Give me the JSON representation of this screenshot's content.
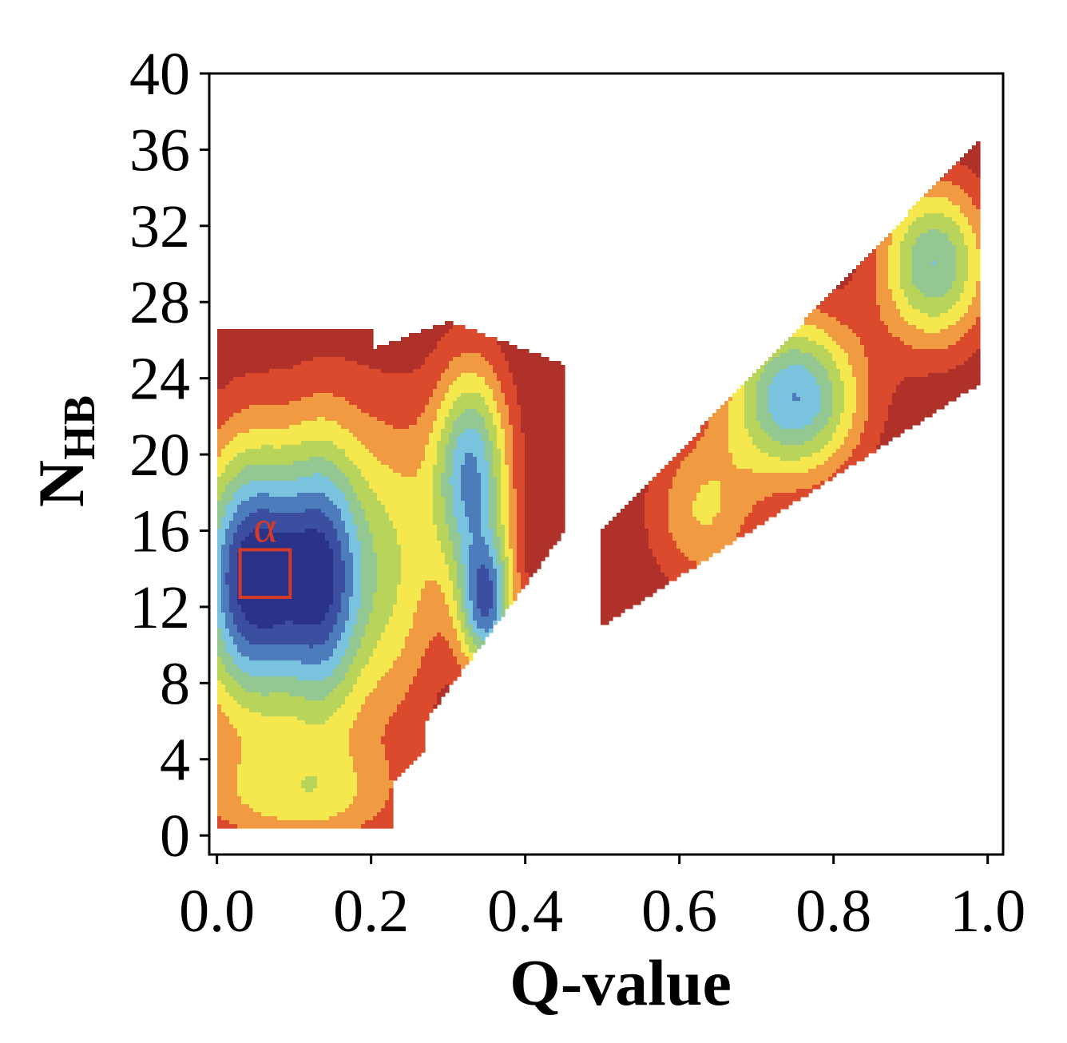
{
  "chart_data": {
    "type": "contour",
    "xlabel": "Q-value",
    "ylabel": {
      "main": "N",
      "subscript": "HB"
    },
    "xlim": [
      -0.01,
      1.02
    ],
    "ylim": [
      -1,
      40
    ],
    "xticks": [
      0.0,
      0.2,
      0.4,
      0.6,
      0.8,
      1.0
    ],
    "xtick_labels": [
      "0.0",
      "0.2",
      "0.4",
      "0.6",
      "0.8",
      "1.0"
    ],
    "yticks": [
      0,
      4,
      8,
      12,
      16,
      20,
      24,
      28,
      32,
      36,
      40
    ],
    "ytick_labels": [
      "0",
      "4",
      "8",
      "12",
      "16",
      "20",
      "24",
      "28",
      "32",
      "36",
      "40"
    ],
    "grid": false,
    "level_colors": [
      "#b0302a",
      "#db4a2c",
      "#f09a42",
      "#f5e84e",
      "#b9d45a",
      "#93c893",
      "#79c3df",
      "#4c7cbc",
      "#3b4ea0",
      "#2b3388"
    ],
    "peaks": [
      {
        "x": 0.05,
        "y": 13.5,
        "depth": 10,
        "sx": 0.055,
        "sy": 5.0
      },
      {
        "x": 0.14,
        "y": 13.5,
        "depth": 6,
        "sx": 0.035,
        "sy": 5.5
      },
      {
        "x": 0.33,
        "y": 19.0,
        "depth": 7,
        "sx": 0.035,
        "sy": 4.0
      },
      {
        "x": 0.35,
        "y": 12.0,
        "depth": 7,
        "sx": 0.025,
        "sy": 2.5
      },
      {
        "x": 0.22,
        "y": 14.0,
        "depth": 4,
        "sx": 0.05,
        "sy": 6.0
      },
      {
        "x": 0.1,
        "y": 2.0,
        "depth": 3,
        "sx": 0.1,
        "sy": 2.0
      },
      {
        "x": 0.75,
        "y": 23.0,
        "depth": 7,
        "sx": 0.06,
        "sy": 3.0
      },
      {
        "x": 0.93,
        "y": 30.0,
        "depth": 6,
        "sx": 0.05,
        "sy": 3.0
      },
      {
        "x": 0.63,
        "y": 17.0,
        "depth": 3,
        "sx": 0.05,
        "sy": 3.0
      }
    ],
    "region": {
      "label": "α",
      "x": [
        0.03,
        0.095
      ],
      "y": [
        12.5,
        15.0
      ],
      "color": "#d23a2a"
    }
  }
}
